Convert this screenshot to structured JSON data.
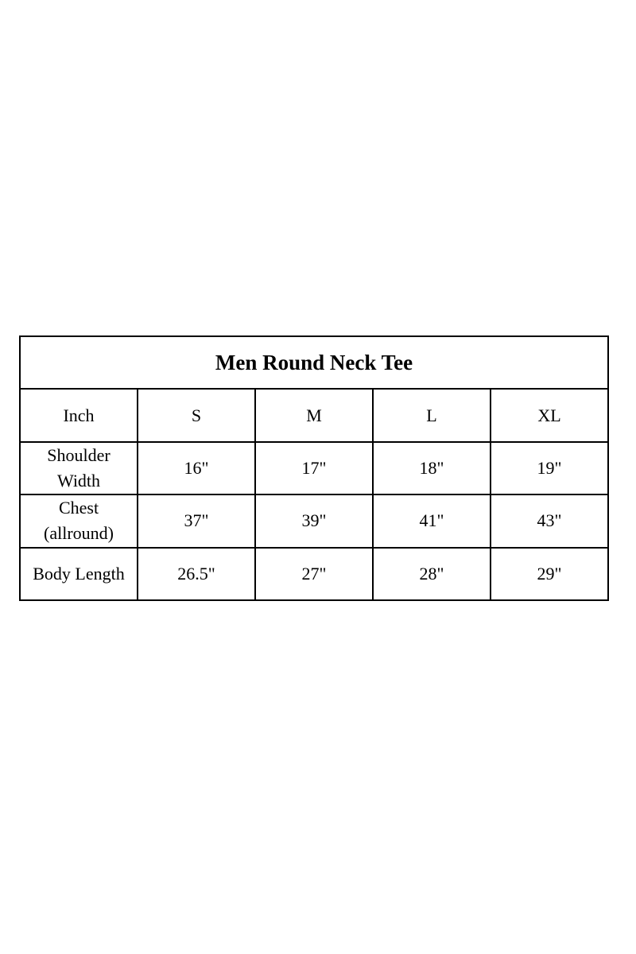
{
  "title": "Men Round Neck Tee",
  "header": [
    "Inch",
    "S",
    "M",
    "L",
    "XL"
  ],
  "rows": [
    {
      "label": "Shoulder\nWidth",
      "values": [
        "16\"",
        "17\"",
        "18\"",
        "19\""
      ]
    },
    {
      "label": "Chest\n(allround)",
      "values": [
        "37\"",
        "39\"",
        "41\"",
        "43\""
      ]
    },
    {
      "label": "Body Length",
      "values": [
        "26.5\"",
        "27\"",
        "28\"",
        "29\""
      ]
    }
  ]
}
